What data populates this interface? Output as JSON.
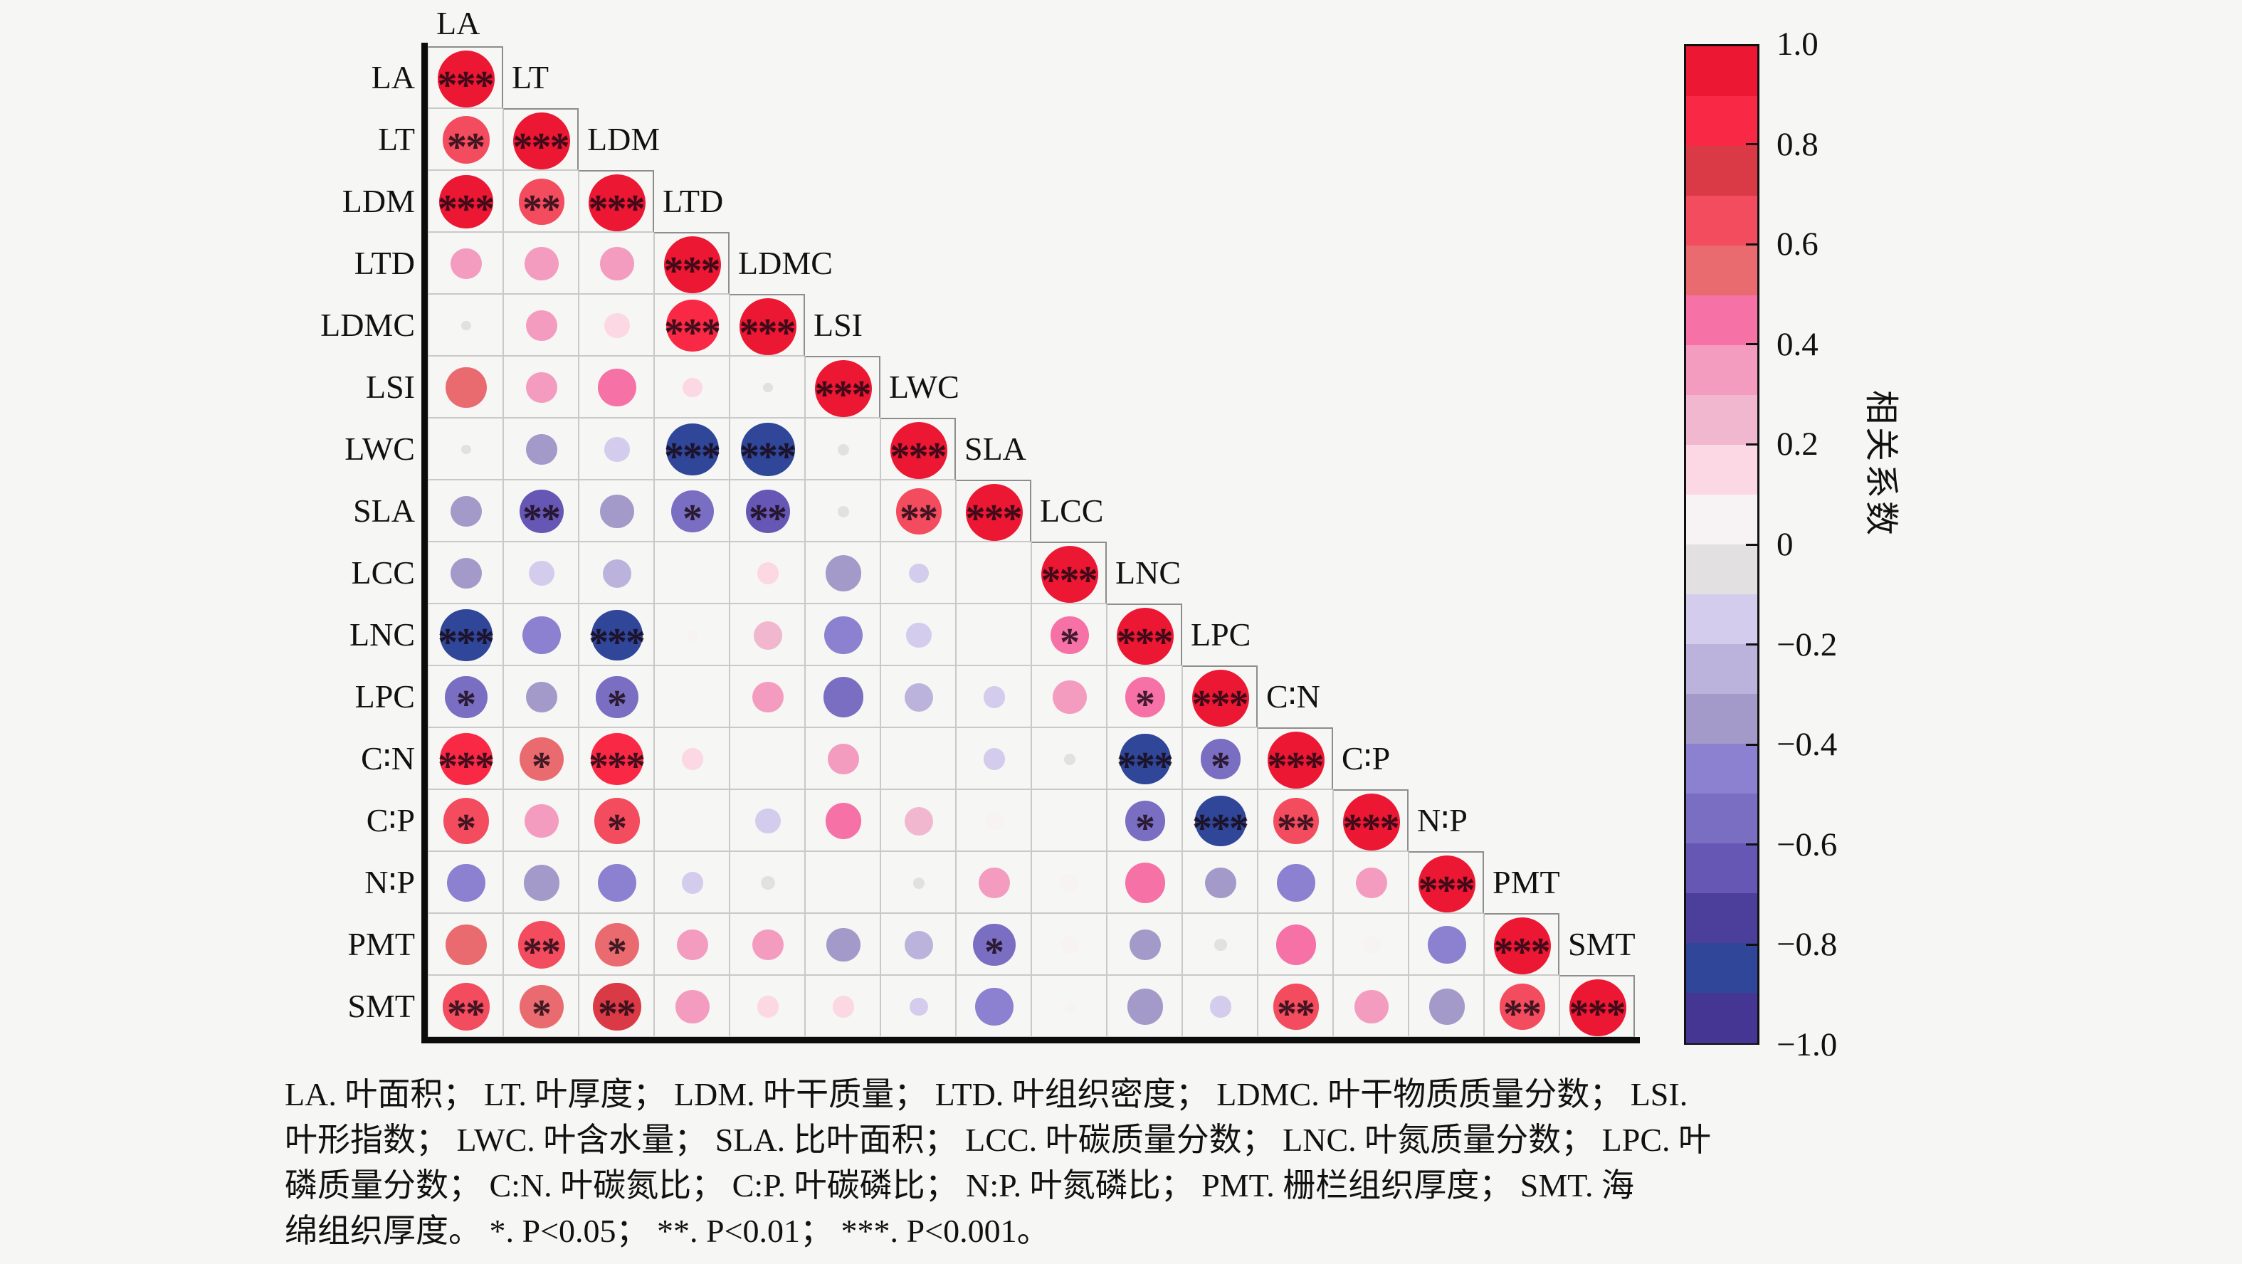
{
  "chart_data": {
    "type": "heatmap",
    "subtype": "correlation-matrix-lower-triangle",
    "variables": [
      "LA",
      "LT",
      "LDM",
      "LTD",
      "LDMC",
      "LSI",
      "LWC",
      "SLA",
      "LCC",
      "LNC",
      "LPC",
      "C∶N",
      "C∶P",
      "N∶P",
      "PMT",
      "SMT"
    ],
    "matrix": [
      {
        "var": "LA",
        "r": [
          1.0
        ],
        "sig": [
          "***"
        ]
      },
      {
        "var": "LT",
        "r": [
          0.7,
          1.0
        ],
        "sig": [
          "**",
          "***"
        ]
      },
      {
        "var": "LDM",
        "r": [
          0.9,
          0.65,
          1.0
        ],
        "sig": [
          "***",
          "**",
          "***"
        ]
      },
      {
        "var": "LTD",
        "r": [
          0.3,
          0.35,
          0.35,
          1.0
        ],
        "sig": [
          "",
          "",
          "",
          "***"
        ]
      },
      {
        "var": "LDMC",
        "r": [
          -0.03,
          0.3,
          0.2,
          0.85,
          1.0
        ],
        "sig": [
          "",
          "",
          "",
          "***",
          "***"
        ]
      },
      {
        "var": "LSI",
        "r": [
          0.52,
          0.3,
          0.45,
          0.12,
          -0.03,
          1.0
        ],
        "sig": [
          "",
          "",
          "",
          "",
          "",
          "***"
        ]
      },
      {
        "var": "LWC",
        "r": [
          -0.03,
          -0.3,
          -0.2,
          -0.85,
          -0.88,
          -0.04,
          1.0
        ],
        "sig": [
          "",
          "",
          "",
          "***",
          "***",
          "",
          "***"
        ]
      },
      {
        "var": "SLA",
        "r": [
          -0.3,
          -0.6,
          -0.35,
          -0.55,
          -0.6,
          -0.04,
          0.65,
          1.0
        ],
        "sig": [
          "",
          "**",
          "",
          "*",
          "**",
          "",
          "**",
          "***"
        ]
      },
      {
        "var": "LCC",
        "r": [
          -0.3,
          -0.2,
          -0.25,
          0,
          0.15,
          -0.4,
          -0.12,
          0,
          1.0
        ],
        "sig": [
          "",
          "",
          "",
          "",
          "",
          "",
          "",
          "",
          "***"
        ]
      },
      {
        "var": "LNC",
        "r": [
          -0.85,
          -0.45,
          -0.8,
          0.04,
          0.25,
          -0.45,
          -0.2,
          0,
          0.45,
          1.0
        ],
        "sig": [
          "***",
          "",
          "***",
          "",
          "",
          "",
          "",
          "",
          "*",
          "***"
        ]
      },
      {
        "var": "LPC",
        "r": [
          -0.55,
          -0.3,
          -0.55,
          0,
          0.3,
          -0.5,
          -0.25,
          -0.15,
          0.35,
          0.5,
          1.0
        ],
        "sig": [
          "*",
          "",
          "*",
          "",
          "",
          "",
          "",
          "",
          "",
          "*",
          "***"
        ]
      },
      {
        "var": "C∶N",
        "r": [
          0.85,
          0.6,
          0.85,
          0.15,
          0,
          0.3,
          0,
          -0.15,
          -0.04,
          -0.8,
          -0.5,
          1.0
        ],
        "sig": [
          "***",
          "*",
          "***",
          "",
          "",
          "",
          "",
          "",
          "",
          "***",
          "*",
          "***"
        ]
      },
      {
        "var": "C∶P",
        "r": [
          0.65,
          0.35,
          0.65,
          0,
          -0.2,
          0.4,
          0.25,
          0.1,
          0,
          -0.5,
          -0.8,
          0.65,
          1.0
        ],
        "sig": [
          "*",
          "",
          "*",
          "",
          "",
          "",
          "",
          "",
          "",
          "*",
          "***",
          "**",
          "***"
        ]
      },
      {
        "var": "N∶P",
        "r": [
          -0.45,
          -0.4,
          -0.45,
          -0.15,
          -0.06,
          0,
          -0.04,
          0.3,
          0.1,
          0.5,
          -0.3,
          -0.45,
          0.3,
          1.0
        ],
        "sig": [
          "",
          "",
          "",
          "",
          "",
          "",
          "",
          "",
          "",
          "",
          "",
          "",
          "",
          "***"
        ]
      },
      {
        "var": "PMT",
        "r": [
          0.52,
          0.7,
          0.6,
          0.3,
          0.3,
          -0.35,
          -0.25,
          -0.55,
          0.1,
          -0.3,
          -0.05,
          0.5,
          0.1,
          -0.45,
          1.0
        ],
        "sig": [
          "",
          "**",
          "*",
          "",
          "",
          "",
          "",
          "*",
          "",
          "",
          "",
          "",
          "",
          "",
          "***"
        ]
      },
      {
        "var": "SMT",
        "r": [
          0.7,
          0.6,
          0.72,
          0.35,
          0.15,
          0.15,
          -0.1,
          -0.45,
          0.04,
          -0.4,
          -0.15,
          0.65,
          0.35,
          -0.4,
          0.65,
          1.0
        ],
        "sig": [
          "**",
          "*",
          "**",
          "",
          "",
          "",
          "",
          "",
          "",
          "",
          "",
          "**",
          "",
          "",
          "**",
          "***"
        ]
      }
    ],
    "size_rule": "circle diameter proportional to sqrt(|r|), max 80px",
    "colorbar": {
      "title": "相关系数",
      "max": 1.0,
      "min": -1.0,
      "tick_labels": [
        "1.0",
        "0.8",
        "0.6",
        "0.4",
        "0.2",
        "0",
        "−0.2",
        "−0.4",
        "−0.6",
        "−0.8",
        "−1.0"
      ],
      "tick_values": [
        1.0,
        0.8,
        0.6,
        0.4,
        0.2,
        0,
        -0.2,
        -0.4,
        -0.6,
        -0.8,
        -1.0
      ],
      "segments": [
        "#ec1733",
        "#f92946",
        "#d93a46",
        "#f24c5e",
        "#e96b70",
        "#f671a5",
        "#f49cc0",
        "#f0b7cf",
        "#fbd8e3",
        "#f7f3f4",
        "#e2e0e1",
        "#d3cced",
        "#bcb3dd",
        "#a39ac9",
        "#8c80d0",
        "#7a6ec2",
        "#6657b5",
        "#4c3f9b",
        "#2f4699",
        "#453693"
      ]
    },
    "significance_legend": {
      "*": "P<0.05",
      "**": "P<0.01",
      "***": "P<0.001"
    }
  },
  "caption": {
    "lines": [
      "LA. 叶面积； LT. 叶厚度； LDM. 叶干质量； LTD. 叶组织密度； LDMC. 叶干物质质量分数； LSI.",
      "叶形指数； LWC. 叶含水量； SLA. 比叶面积； LCC. 叶碳质量分数； LNC. 叶氮质量分数； LPC. 叶",
      "磷质量分数； C:N. 叶碳氮比； C:P. 叶碳磷比； N:P. 叶氮磷比； PMT. 栅栏组织厚度； SMT. 海",
      "绵组织厚度。 *. P<0.05； **. P<0.01； ***. P<0.001。"
    ]
  },
  "colors": {
    "background": "#f6f6f4",
    "grid_line": "#c9c9c9",
    "step_line": "#8d8d8d",
    "axis_line": "#0c0c0c",
    "star": "rgba(25,8,18,0.82)"
  }
}
